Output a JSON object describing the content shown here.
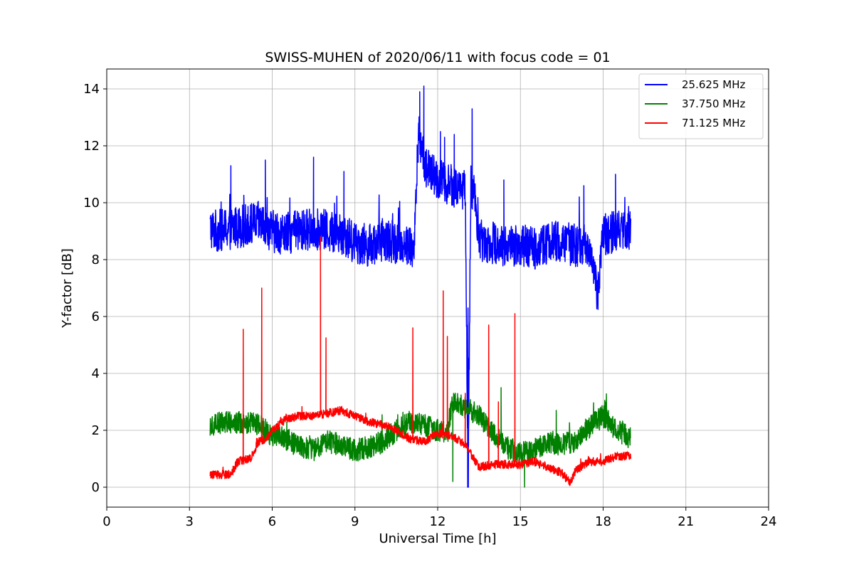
{
  "chart_data": {
    "type": "line",
    "title": "SWISS-MUHEN of 2020/06/11 with focus code = 01",
    "xlabel": "Universal Time [h]",
    "ylabel": "Y-factor [dB]",
    "xlim": [
      0,
      24
    ],
    "ylim": [
      -0.7,
      14.7
    ],
    "xticks": [
      0,
      3,
      6,
      9,
      12,
      15,
      18,
      21,
      24
    ],
    "yticks": [
      0,
      2,
      4,
      6,
      8,
      10,
      12,
      14
    ],
    "xtick_labels": [
      "0",
      "3",
      "6",
      "9",
      "12",
      "15",
      "18",
      "21",
      "24"
    ],
    "ytick_labels": [
      "0",
      "2",
      "4",
      "6",
      "8",
      "10",
      "12",
      "14"
    ],
    "grid": true,
    "legend_position": "top-right",
    "series": [
      {
        "name": "25.625 MHz",
        "color": "#0000ff",
        "x": [
          3.75,
          4.0,
          4.5,
          5.0,
          5.5,
          6.0,
          6.5,
          7.0,
          7.5,
          8.0,
          8.5,
          9.0,
          9.5,
          10.0,
          10.5,
          11.0,
          11.15,
          11.3,
          11.6,
          12.0,
          12.5,
          13.0,
          13.1,
          13.2,
          13.35,
          13.5,
          14.0,
          14.5,
          15.0,
          15.5,
          16.0,
          16.5,
          17.0,
          17.5,
          17.8,
          18.0,
          18.5,
          19.0
        ],
        "values": [
          9.1,
          9.0,
          9.1,
          9.2,
          9.3,
          9.0,
          8.9,
          9.0,
          9.1,
          9.0,
          8.9,
          8.6,
          8.5,
          8.7,
          8.6,
          8.5,
          8.4,
          12.4,
          11.2,
          10.8,
          10.6,
          10.5,
          0.0,
          10.4,
          10.3,
          8.7,
          8.6,
          8.5,
          8.5,
          8.4,
          8.6,
          8.6,
          8.5,
          8.5,
          6.7,
          8.9,
          9.0,
          9.0
        ],
        "noise_amplitude": 0.75,
        "peaks": [
          [
            4.5,
            11.3
          ],
          [
            5.75,
            11.5
          ],
          [
            7.5,
            11.6
          ],
          [
            8.6,
            11.1
          ],
          [
            11.5,
            14.1
          ],
          [
            11.35,
            13.9
          ],
          [
            12.1,
            12.5
          ],
          [
            12.25,
            12.3
          ],
          [
            12.6,
            12.4
          ],
          [
            13.25,
            13.3
          ],
          [
            13.1,
            6.3
          ],
          [
            14.4,
            10.8
          ],
          [
            17.3,
            10.6
          ],
          [
            18.45,
            11.0
          ]
        ]
      },
      {
        "name": "37.750 MHz",
        "color": "#008000",
        "x": [
          3.75,
          4.5,
          5.5,
          6.0,
          6.5,
          7.0,
          7.5,
          8.0,
          8.5,
          9.0,
          9.5,
          10.0,
          10.5,
          11.0,
          11.5,
          12.0,
          12.4,
          12.5,
          13.0,
          13.5,
          14.0,
          14.5,
          15.0,
          15.5,
          16.0,
          16.5,
          17.0,
          17.5,
          18.0,
          18.5,
          19.0
        ],
        "values": [
          2.2,
          2.3,
          2.2,
          1.8,
          1.7,
          1.4,
          1.3,
          1.6,
          1.5,
          1.3,
          1.4,
          1.6,
          2.0,
          2.3,
          2.2,
          2.0,
          1.9,
          3.0,
          2.8,
          2.5,
          1.9,
          1.4,
          1.2,
          1.3,
          1.6,
          1.5,
          1.6,
          2.1,
          2.5,
          2.0,
          1.7
        ],
        "noise_amplitude": 0.4,
        "peaks": [
          [
            12.55,
            0.2
          ],
          [
            15.15,
            0.0
          ],
          [
            14.3,
            3.5
          ],
          [
            16.3,
            2.7
          ],
          [
            18.1,
            3.0
          ]
        ]
      },
      {
        "name": "71.125 MHz",
        "color": "#ff0000",
        "x": [
          3.75,
          4.5,
          4.75,
          5.2,
          5.5,
          5.8,
          6.0,
          6.5,
          7.0,
          7.5,
          8.0,
          8.5,
          9.0,
          9.5,
          10.0,
          10.5,
          11.0,
          11.5,
          12.0,
          12.5,
          13.0,
          13.5,
          14.0,
          14.5,
          15.0,
          15.5,
          16.0,
          16.5,
          16.8,
          17.0,
          17.5,
          18.0,
          18.5,
          19.0
        ],
        "values": [
          0.45,
          0.45,
          0.9,
          1.0,
          1.6,
          1.7,
          2.0,
          2.4,
          2.5,
          2.5,
          2.6,
          2.7,
          2.5,
          2.3,
          2.2,
          2.0,
          1.7,
          1.6,
          1.9,
          1.8,
          1.5,
          0.7,
          0.8,
          0.8,
          0.8,
          0.9,
          0.7,
          0.5,
          0.15,
          0.6,
          0.9,
          0.9,
          1.1,
          1.1
        ],
        "noise_amplitude": 0.15,
        "peaks": [
          [
            4.95,
            5.55
          ],
          [
            5.62,
            7.0
          ],
          [
            7.75,
            8.8
          ],
          [
            7.95,
            5.25
          ],
          [
            11.1,
            5.6
          ],
          [
            12.2,
            6.9
          ],
          [
            12.35,
            5.3
          ],
          [
            13.85,
            5.7
          ],
          [
            14.8,
            6.1
          ],
          [
            13.0,
            3.3
          ],
          [
            14.2,
            3.0
          ]
        ]
      }
    ]
  }
}
